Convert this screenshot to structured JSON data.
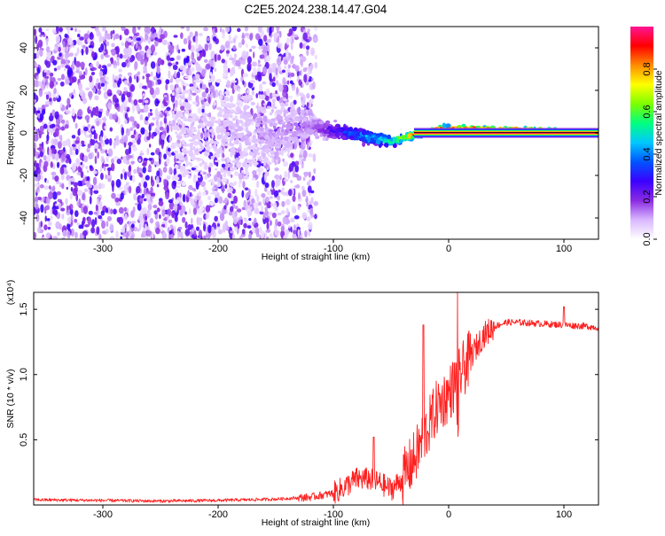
{
  "title": "C2E5.2024.238.14.47.G04",
  "chart_data": [
    {
      "type": "heatmap",
      "xlabel": "Height of straight line (km)",
      "ylabel": "Frequency (Hz)",
      "xlim": [
        -360,
        130
      ],
      "ylim": [
        -50,
        50
      ],
      "xticks": [
        -300,
        -200,
        -100,
        0,
        100
      ],
      "yticks": [
        -40,
        -20,
        0,
        20,
        40
      ],
      "colorbar": {
        "label": "Normalized spectral amplitude",
        "range": [
          0,
          1
        ],
        "ticks": [
          0.0,
          0.2,
          0.4,
          0.6,
          0.8
        ],
        "colormap": [
          "#ffffff",
          "#d9b8ff",
          "#8a2be2",
          "#3b00ff",
          "#0055ff",
          "#00c8ff",
          "#00ff80",
          "#7dff00",
          "#ffff00",
          "#ff8c00",
          "#ff0000",
          "#ff1493"
        ]
      },
      "description_profile": [
        {
          "x": -360,
          "center_hz": 0,
          "spread_hz": 50,
          "amp": 0.05
        },
        {
          "x": -200,
          "center_hz": 0,
          "spread_hz": 45,
          "amp": 0.08
        },
        {
          "x": -120,
          "center_hz": 3,
          "spread_hz": 6,
          "amp": 0.15
        },
        {
          "x": -90,
          "center_hz": 0,
          "spread_hz": 5,
          "amp": 0.35
        },
        {
          "x": -50,
          "center_hz": -4,
          "spread_hz": 3,
          "amp": 0.6
        },
        {
          "x": -30,
          "center_hz": -1,
          "spread_hz": 2,
          "amp": 0.9
        },
        {
          "x": -5,
          "center_hz": 2,
          "spread_hz": 2,
          "amp": 0.95
        },
        {
          "x": 130,
          "center_hz": 0,
          "spread_hz": 1.5,
          "amp": 1.0
        }
      ]
    },
    {
      "type": "line",
      "xlabel": "Height of straight line (km)",
      "ylabel": "SNR (10 * v/v)",
      "y_multiplier": "(x10⁴)",
      "xlim": [
        -360,
        130
      ],
      "ylim": [
        0,
        1.63
      ],
      "xticks": [
        -300,
        -200,
        -100,
        0,
        100
      ],
      "yticks": [
        0.5,
        1.0,
        1.5
      ],
      "series": [
        {
          "color": "#ff2020",
          "x": [
            -360,
            -300,
            -250,
            -200,
            -150,
            -120,
            -100,
            -90,
            -80,
            -70,
            -60,
            -50,
            -40,
            -30,
            -20,
            -10,
            0,
            10,
            20,
            30,
            40,
            50,
            60,
            80,
            100,
            120,
            130
          ],
          "y": [
            0.04,
            0.035,
            0.03,
            0.035,
            0.045,
            0.06,
            0.09,
            0.14,
            0.2,
            0.2,
            0.17,
            0.12,
            0.2,
            0.35,
            0.55,
            0.75,
            0.85,
            1.0,
            1.15,
            1.3,
            1.37,
            1.4,
            1.4,
            1.39,
            1.38,
            1.37,
            1.36
          ]
        }
      ],
      "annotations": [
        {
          "x": -65,
          "y": 0.52
        },
        {
          "x": -22,
          "y": 1.38
        },
        {
          "x": 8,
          "y": 1.63
        },
        {
          "x": 100,
          "y": 1.52
        }
      ]
    }
  ]
}
